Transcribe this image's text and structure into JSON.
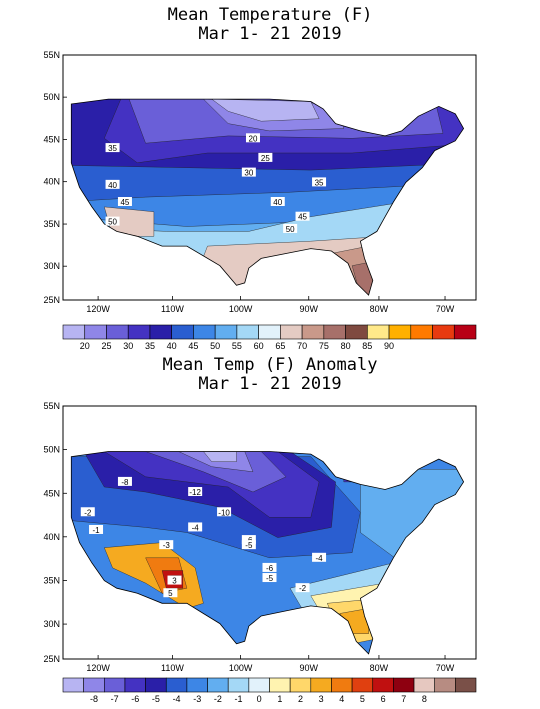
{
  "maps": [
    {
      "title_line1": "Mean Temperature (F)",
      "title_line2": "Mar 1- 21 2019",
      "lat_labels": [
        "55N",
        "50N",
        "45N",
        "40N",
        "35N",
        "30N",
        "25N"
      ],
      "lon_labels": [
        "120W",
        "110W",
        "100W",
        "90W",
        "80W",
        "70W"
      ],
      "contour_labels": [
        "20",
        "25",
        "30",
        "35",
        "35",
        "40",
        "45",
        "40",
        "45",
        "50",
        "50"
      ],
      "legend": {
        "labels": [
          "20",
          "25",
          "30",
          "35",
          "40",
          "45",
          "50",
          "55",
          "60",
          "65",
          "70",
          "75",
          "80",
          "85",
          "90"
        ],
        "colors": [
          "#b7b4f2",
          "#8f86e8",
          "#6a5fd8",
          "#4432c2",
          "#2a1fa8",
          "#2a5ed0",
          "#3d86e6",
          "#62aef0",
          "#a4d8f6",
          "#e2f2fb",
          "#e4cbc3",
          "#c9998a",
          "#a7706a",
          "#7f4a40",
          "#ffe98a",
          "#ffb000",
          "#ff7a00",
          "#e83a10",
          "#b80016"
        ]
      }
    },
    {
      "title_line1": "Mean Temp (F) Anomaly",
      "title_line2": "Mar 1- 21 2019",
      "lat_labels": [
        "55N",
        "50N",
        "45N",
        "40N",
        "35N",
        "30N",
        "25N"
      ],
      "lon_labels": [
        "120W",
        "110W",
        "100W",
        "90W",
        "80W",
        "70W"
      ],
      "contour_labels": [
        "-8",
        "-12",
        "-10",
        "-2",
        "-4",
        "-3",
        "-6",
        "-5",
        "-4",
        "-6",
        "-5",
        "-2",
        "-1",
        "3",
        "5"
      ],
      "legend": {
        "labels": [
          "-8",
          "-7",
          "-6",
          "-5",
          "-4",
          "-3",
          "-2",
          "-1",
          "0",
          "1",
          "2",
          "3",
          "4",
          "5",
          "6",
          "7",
          "8"
        ],
        "colors": [
          "#b7b4f2",
          "#8f86e8",
          "#6a5fd8",
          "#4432c2",
          "#2a1fa8",
          "#2a5ed0",
          "#3d86e6",
          "#62aef0",
          "#a4d8f6",
          "#e2f2fb",
          "#fff3b0",
          "#ffd76a",
          "#f5aa20",
          "#f07b10",
          "#e04010",
          "#c01010",
          "#8e0010",
          "#e6c8c0",
          "#b78c82",
          "#7a5048"
        ]
      }
    }
  ]
}
